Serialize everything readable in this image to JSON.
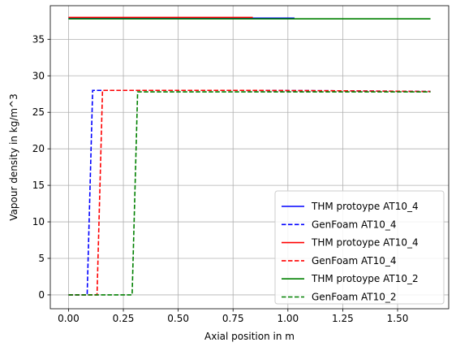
{
  "chart_data": {
    "type": "line",
    "title": "",
    "xlabel": "Axial position in m",
    "ylabel": "Vapour density in kg/m^3",
    "xlim": [
      -0.083,
      1.733
    ],
    "ylim": [
      -1.9,
      39.6
    ],
    "xticks": [
      0.0,
      0.25,
      0.5,
      0.75,
      1.0,
      1.25,
      1.5
    ],
    "xtick_labels": [
      "0.00",
      "0.25",
      "0.50",
      "0.75",
      "1.00",
      "1.25",
      "1.50"
    ],
    "yticks": [
      0,
      5,
      10,
      15,
      20,
      25,
      30,
      35
    ],
    "ytick_labels": [
      "0",
      "5",
      "10",
      "15",
      "20",
      "25",
      "30",
      "35"
    ],
    "grid": true,
    "legend_position": "lower-right",
    "series": [
      {
        "name": "THM protoype AT10_4",
        "color": "#0000ff",
        "style": "solid",
        "x": [
          0.0,
          1.03
        ],
        "y": [
          37.9,
          37.9
        ]
      },
      {
        "name": "GenFoam AT10_4",
        "color": "#0000ff",
        "style": "dashed",
        "x": [
          0.0,
          0.085,
          0.11,
          0.4,
          0.8,
          1.2,
          1.65
        ],
        "y": [
          0.0,
          0.0,
          28.0,
          28.0,
          28.0,
          27.95,
          27.85
        ]
      },
      {
        "name": "THM protoype AT10_4",
        "color": "#ff0000",
        "style": "solid",
        "x": [
          0.0,
          0.84
        ],
        "y": [
          38.0,
          38.0
        ]
      },
      {
        "name": "GenFoam AT10_4",
        "color": "#ff0000",
        "style": "dashed",
        "x": [
          0.0,
          0.13,
          0.155,
          0.4,
          0.8,
          1.2,
          1.65
        ],
        "y": [
          0.0,
          0.0,
          28.0,
          28.0,
          28.0,
          27.95,
          27.85
        ]
      },
      {
        "name": "THM protoype AT10_2",
        "color": "#008000",
        "style": "solid",
        "x": [
          0.0,
          1.65
        ],
        "y": [
          37.8,
          37.8
        ]
      },
      {
        "name": "GenFoam AT10_2",
        "color": "#008000",
        "style": "dashed",
        "x": [
          0.0,
          0.29,
          0.315,
          0.6,
          1.0,
          1.3,
          1.65
        ],
        "y": [
          0.0,
          0.0,
          27.8,
          27.8,
          27.8,
          27.8,
          27.8
        ]
      }
    ]
  }
}
